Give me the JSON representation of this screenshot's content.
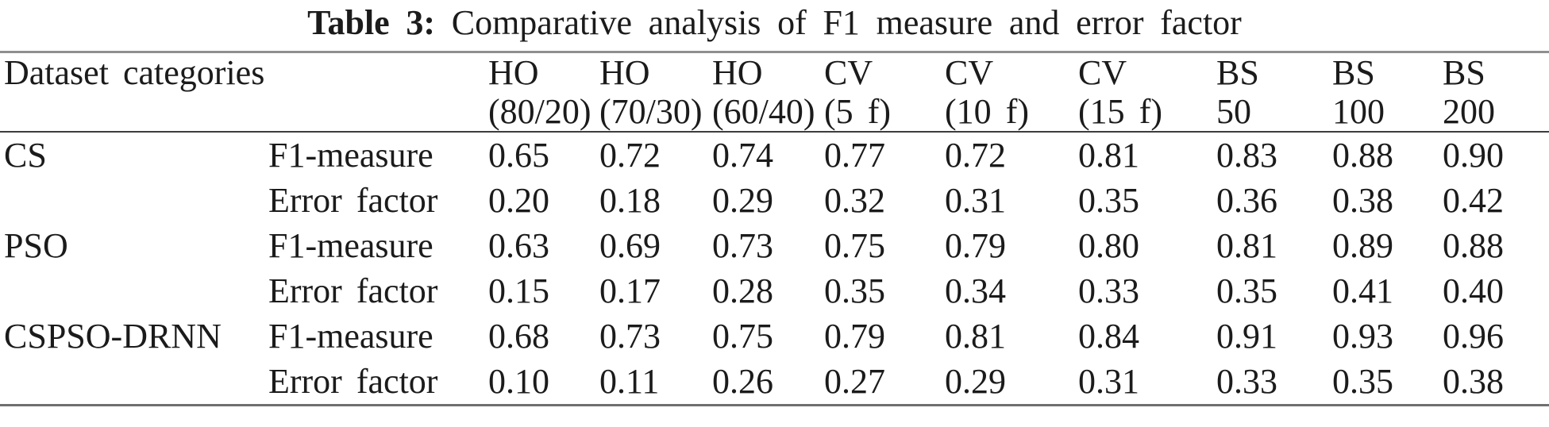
{
  "table": {
    "title": {
      "label": "Table 3:",
      "text": "Comparative analysis of F1 measure and error factor"
    },
    "header": {
      "row_header": "Dataset categories",
      "columns": [
        {
          "line1": "HO",
          "line2": "(80/20)"
        },
        {
          "line1": "HO",
          "line2": "(70/30)"
        },
        {
          "line1": "HO",
          "line2": "(60/40)"
        },
        {
          "line1": "CV",
          "line2": "(5 f)"
        },
        {
          "line1": "CV",
          "line2": "(10 f)"
        },
        {
          "line1": "CV",
          "line2": "(15 f)"
        },
        {
          "line1": "BS",
          "line2": "50"
        },
        {
          "line1": "BS",
          "line2": "100"
        },
        {
          "line1": "BS",
          "line2": "200"
        }
      ]
    },
    "groups": [
      {
        "category": "CS",
        "rows": [
          {
            "metric": "F1-measure",
            "values": [
              "0.65",
              "0.72",
              "0.74",
              "0.77",
              "0.72",
              "0.81",
              "0.83",
              "0.88",
              "0.90"
            ]
          },
          {
            "metric": "Error factor",
            "values": [
              "0.20",
              "0.18",
              "0.29",
              "0.32",
              "0.31",
              "0.35",
              "0.36",
              "0.38",
              "0.42"
            ]
          }
        ]
      },
      {
        "category": "PSO",
        "rows": [
          {
            "metric": "F1-measure",
            "values": [
              "0.63",
              "0.69",
              "0.73",
              "0.75",
              "0.79",
              "0.80",
              "0.81",
              "0.89",
              "0.88"
            ]
          },
          {
            "metric": "Error factor",
            "values": [
              "0.15",
              "0.17",
              "0.28",
              "0.35",
              "0.34",
              "0.33",
              "0.35",
              "0.41",
              "0.40"
            ]
          }
        ]
      },
      {
        "category": "CSPSO-DRNN",
        "rows": [
          {
            "metric": "F1-measure",
            "values": [
              "0.68",
              "0.73",
              "0.75",
              "0.79",
              "0.81",
              "0.84",
              "0.91",
              "0.93",
              "0.96"
            ]
          },
          {
            "metric": "Error factor",
            "values": [
              "0.10",
              "0.11",
              "0.26",
              "0.27",
              "0.29",
              "0.31",
              "0.33",
              "0.35",
              "0.38"
            ]
          }
        ]
      }
    ]
  },
  "chart_data": {
    "type": "table",
    "title": "Table 3: Comparative analysis of F1 measure and error factor",
    "categories": [
      "HO (80/20)",
      "HO (70/30)",
      "HO (60/40)",
      "CV (5 f)",
      "CV (10 f)",
      "CV (15 f)",
      "BS 50",
      "BS 100",
      "BS 200"
    ],
    "series": [
      {
        "name": "CS F1-measure",
        "values": [
          0.65,
          0.72,
          0.74,
          0.77,
          0.72,
          0.81,
          0.83,
          0.88,
          0.9
        ]
      },
      {
        "name": "CS Error factor",
        "values": [
          0.2,
          0.18,
          0.29,
          0.32,
          0.31,
          0.35,
          0.36,
          0.38,
          0.42
        ]
      },
      {
        "name": "PSO F1-measure",
        "values": [
          0.63,
          0.69,
          0.73,
          0.75,
          0.79,
          0.8,
          0.81,
          0.89,
          0.88
        ]
      },
      {
        "name": "PSO Error factor",
        "values": [
          0.15,
          0.17,
          0.28,
          0.35,
          0.34,
          0.33,
          0.35,
          0.41,
          0.4
        ]
      },
      {
        "name": "CSPSO-DRNN F1-measure",
        "values": [
          0.68,
          0.73,
          0.75,
          0.79,
          0.81,
          0.84,
          0.91,
          0.93,
          0.96
        ]
      },
      {
        "name": "CSPSO-DRNN Error factor",
        "values": [
          0.1,
          0.11,
          0.26,
          0.27,
          0.29,
          0.31,
          0.33,
          0.35,
          0.38
        ]
      }
    ]
  }
}
